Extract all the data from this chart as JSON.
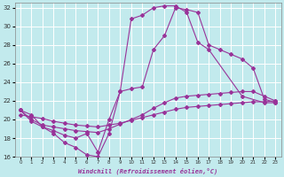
{
  "xlabel": "Windchill (Refroidissement éolien,°C)",
  "bg_color": "#c2eaed",
  "grid_color": "#ffffff",
  "line_color": "#993399",
  "xlim": [
    -0.5,
    23.5
  ],
  "ylim": [
    16,
    32.5
  ],
  "yticks": [
    16,
    18,
    20,
    22,
    24,
    26,
    28,
    30,
    32
  ],
  "xticks": [
    0,
    1,
    2,
    3,
    4,
    5,
    6,
    7,
    8,
    9,
    10,
    11,
    12,
    13,
    14,
    15,
    16,
    17,
    18,
    19,
    20,
    21,
    22,
    23
  ],
  "series": [
    {
      "x": [
        0,
        1,
        2,
        3,
        4,
        5,
        6,
        7,
        8,
        9,
        10,
        11,
        12,
        13,
        14,
        15,
        16,
        17,
        20,
        22,
        23
      ],
      "y": [
        21,
        19.8,
        19.2,
        18.5,
        17.5,
        17,
        16.2,
        16,
        18.5,
        23,
        30.8,
        31.2,
        32.0,
        32.2,
        32.2,
        31.5,
        28.3,
        27.5,
        22.5,
        21.8,
        21.8
      ]
    },
    {
      "x": [
        0,
        1,
        2,
        3,
        4,
        5,
        6,
        7,
        8,
        9,
        10,
        11,
        12,
        13,
        14,
        15,
        16,
        17,
        18,
        19,
        20,
        21,
        22,
        23
      ],
      "y": [
        20.5,
        20.3,
        20.1,
        19.8,
        19.6,
        19.4,
        19.3,
        19.2,
        19.4,
        19.6,
        19.9,
        20.2,
        20.5,
        20.8,
        21.1,
        21.3,
        21.4,
        21.5,
        21.6,
        21.7,
        21.8,
        21.9,
        21.9,
        22.0
      ]
    },
    {
      "x": [
        0,
        1,
        2,
        3,
        4,
        5,
        6,
        7,
        8,
        9,
        10,
        11,
        12,
        13,
        14,
        15,
        16,
        17,
        18,
        19,
        20,
        21,
        22,
        23
      ],
      "y": [
        21.0,
        20.0,
        19.4,
        19.2,
        19.0,
        18.8,
        18.7,
        18.6,
        19.0,
        19.5,
        20.0,
        20.5,
        21.2,
        21.8,
        22.3,
        22.5,
        22.6,
        22.7,
        22.8,
        22.9,
        23.0,
        23.0,
        22.5,
        22.0
      ]
    },
    {
      "x": [
        0,
        1,
        2,
        3,
        4,
        5,
        6,
        7,
        8,
        9,
        10,
        11,
        12,
        13,
        14,
        15,
        16,
        17,
        18,
        19,
        20,
        21,
        22,
        23
      ],
      "y": [
        21.0,
        20.5,
        19.2,
        18.8,
        18.3,
        18.0,
        18.5,
        16.5,
        20.0,
        23.0,
        23.3,
        23.5,
        27.5,
        29.0,
        32.0,
        31.8,
        31.5,
        28.0,
        27.5,
        27.0,
        26.5,
        25.5,
        22.2,
        21.8
      ]
    }
  ]
}
